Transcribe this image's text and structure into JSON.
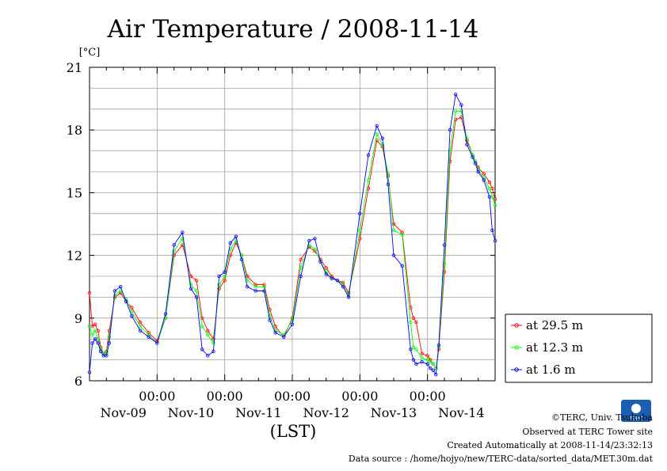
{
  "chart_data": {
    "type": "line",
    "title": "Air Temperature / 2008-11-14",
    "yunit": "[°C]",
    "xlabel": "(LST)",
    "ylim": [
      6,
      21
    ],
    "yticks": [
      6,
      9,
      12,
      15,
      18,
      21
    ],
    "x_range_hours": [
      0,
      144
    ],
    "xticks_hours": [
      24,
      48,
      72,
      96,
      120
    ],
    "xtick_time_labels": [
      "00:00",
      "00:00",
      "00:00",
      "00:00",
      "00:00"
    ],
    "day_labels": [
      "Nov-09",
      "Nov-10",
      "Nov-11",
      "Nov-12",
      "Nov-13",
      "Nov-14"
    ],
    "grid": true,
    "legend_position": "right",
    "x_sample_hours": [
      0,
      1,
      2,
      3,
      4,
      5,
      6,
      7,
      9,
      11,
      13,
      15,
      18,
      21,
      24,
      27,
      30,
      33,
      36,
      38,
      40,
      42,
      44,
      46,
      48,
      50,
      52,
      54,
      56,
      59,
      62,
      64,
      66,
      69,
      72,
      75,
      78,
      80,
      82,
      84,
      86,
      88,
      90,
      92,
      96,
      99,
      102,
      104,
      106,
      108,
      111,
      114,
      115,
      116,
      118,
      120,
      121,
      122,
      123,
      124,
      126,
      128,
      130,
      132,
      134,
      136,
      137,
      138,
      140,
      142,
      143,
      144
    ],
    "series": [
      {
        "name": "at 29.5 m",
        "color": "#ff0000",
        "values": [
          10.2,
          8.6,
          8.7,
          8.4,
          7.6,
          7.3,
          7.4,
          8.4,
          10.0,
          10.2,
          9.8,
          9.5,
          8.8,
          8.3,
          7.9,
          9.0,
          12.0,
          12.5,
          11.0,
          10.8,
          9.0,
          8.4,
          8.0,
          10.4,
          10.8,
          12.0,
          12.6,
          12.0,
          11.0,
          10.6,
          10.6,
          9.4,
          8.6,
          8.1,
          9.0,
          11.8,
          12.4,
          12.2,
          11.8,
          11.4,
          11.0,
          10.8,
          10.7,
          10.2,
          12.8,
          15.2,
          17.5,
          17.2,
          15.8,
          13.5,
          13.1,
          9.5,
          9.0,
          8.8,
          7.3,
          7.2,
          7.0,
          6.8,
          6.6,
          7.5,
          11.2,
          16.5,
          18.5,
          18.6,
          17.5,
          16.8,
          16.5,
          16.2,
          15.9,
          15.5,
          15.2,
          14.7
        ]
      },
      {
        "name": "at 12.3 m",
        "color": "#00ff00",
        "values": [
          8.6,
          8.2,
          8.4,
          8.0,
          7.5,
          7.3,
          7.3,
          8.1,
          10.1,
          10.3,
          9.9,
          9.3,
          8.6,
          8.2,
          7.8,
          9.0,
          12.2,
          12.8,
          10.6,
          10.3,
          8.6,
          8.2,
          7.8,
          10.6,
          11.0,
          12.3,
          12.7,
          12.0,
          10.8,
          10.5,
          10.5,
          9.1,
          8.4,
          8.2,
          8.9,
          11.4,
          12.5,
          12.3,
          11.7,
          11.2,
          10.9,
          10.8,
          10.6,
          10.1,
          13.2,
          15.6,
          17.8,
          17.3,
          15.9,
          13.2,
          13.0,
          8.8,
          7.6,
          7.5,
          7.1,
          7.0,
          6.9,
          6.8,
          6.6,
          7.6,
          11.6,
          17.0,
          18.9,
          18.9,
          17.6,
          16.8,
          16.5,
          16.1,
          15.7,
          15.2,
          14.8,
          14.4
        ]
      },
      {
        "name": "at 1.6 m",
        "color": "#0000ff",
        "values": [
          6.4,
          7.8,
          8.0,
          7.8,
          7.4,
          7.2,
          7.2,
          7.8,
          10.3,
          10.5,
          9.8,
          9.1,
          8.4,
          8.1,
          7.8,
          9.2,
          12.5,
          13.1,
          10.4,
          10.0,
          7.5,
          7.2,
          7.4,
          11.0,
          11.2,
          12.6,
          12.9,
          11.8,
          10.5,
          10.3,
          10.3,
          8.9,
          8.3,
          8.1,
          8.7,
          11.0,
          12.7,
          12.8,
          11.7,
          11.1,
          10.9,
          10.8,
          10.5,
          10.0,
          14.0,
          16.8,
          18.2,
          17.6,
          15.4,
          12.0,
          11.5,
          7.5,
          7.0,
          6.8,
          6.9,
          6.8,
          6.6,
          6.5,
          6.3,
          7.7,
          12.5,
          18.0,
          19.7,
          19.2,
          17.3,
          16.7,
          16.4,
          16.0,
          15.6,
          14.8,
          13.2,
          12.7
        ]
      }
    ]
  },
  "credits": {
    "copyright": "©TERC, Univ. Tsukuba",
    "observed": "Observed at TERC Tower site",
    "created": "Created Automatically at 2008-11-14/23:32:13",
    "source": "Data source : /home/hojyo/new/TERC-data/sorted_data/MET.30m.dat",
    "logo_text": "TERC"
  }
}
